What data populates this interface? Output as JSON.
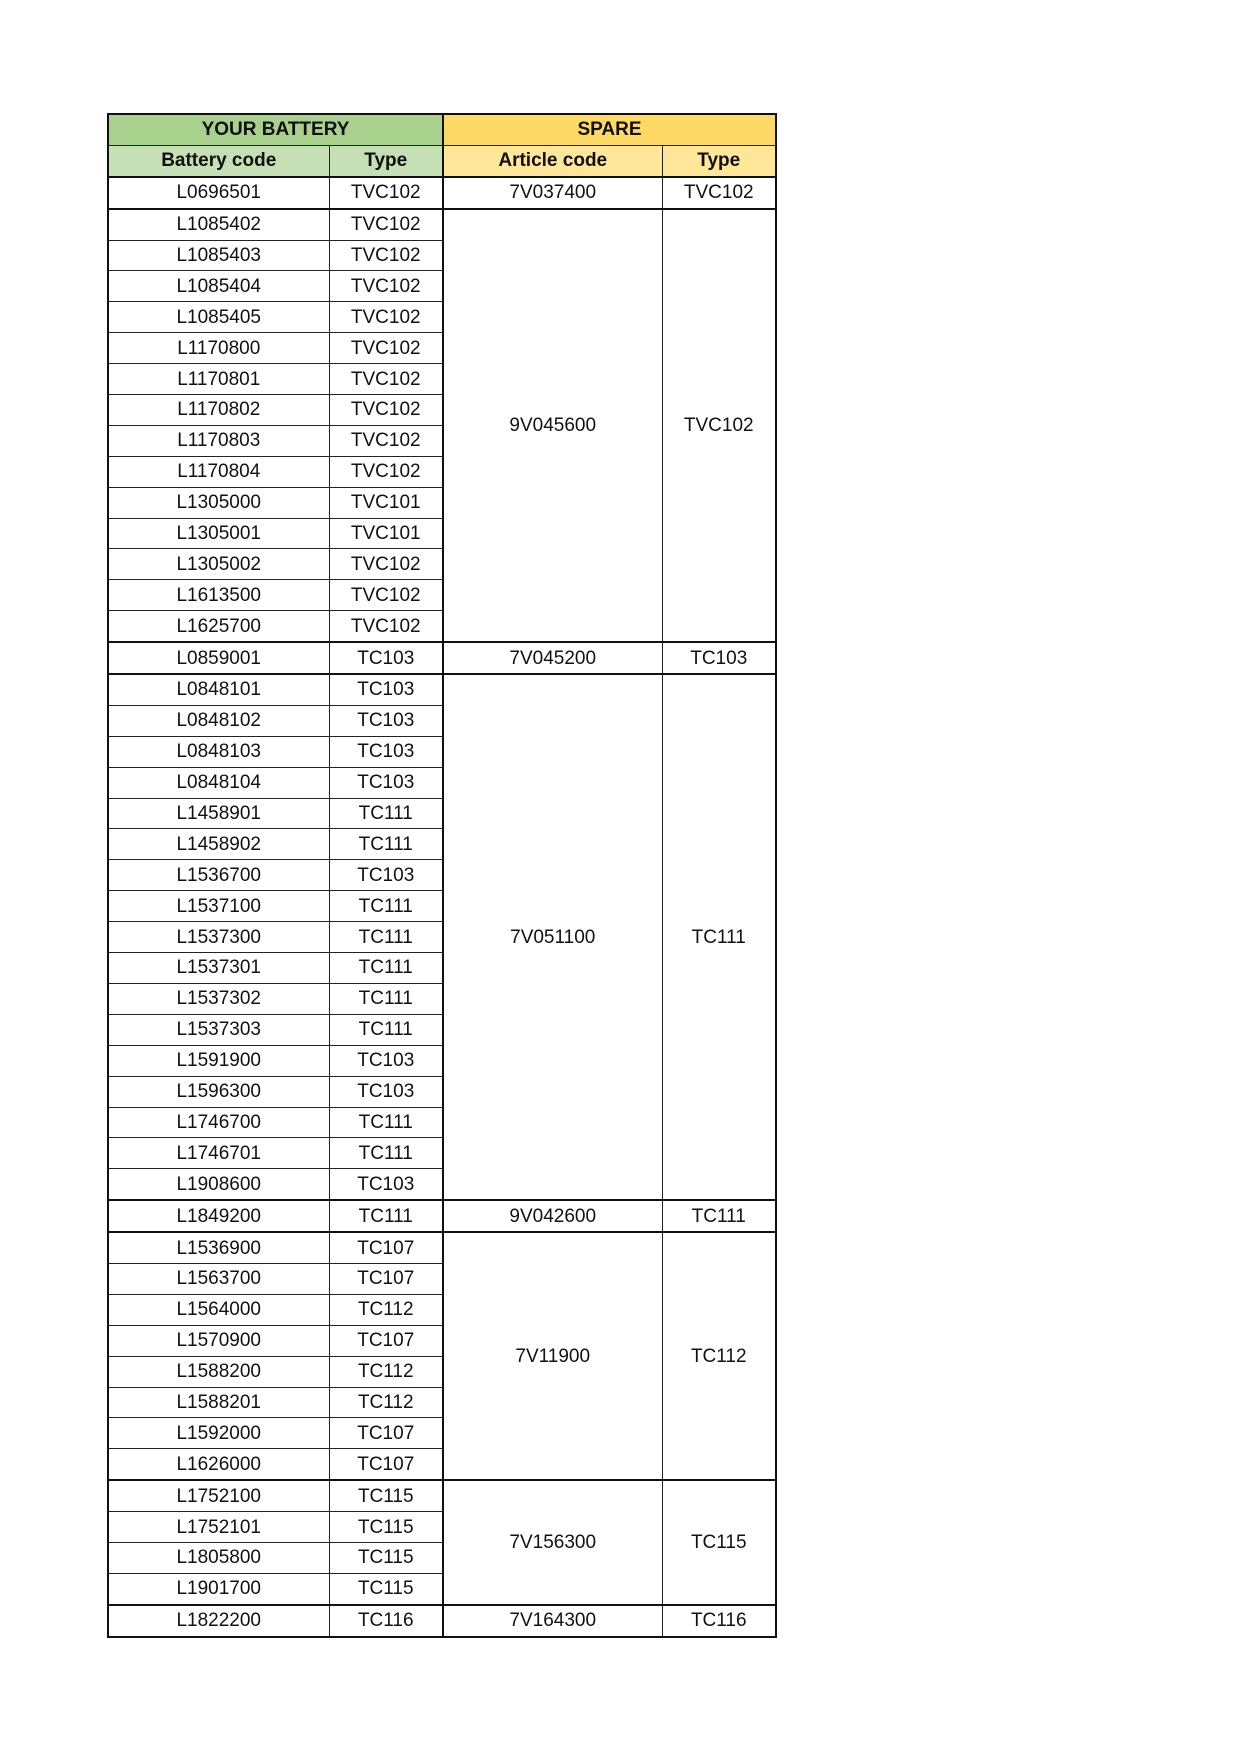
{
  "header": {
    "your_battery": "YOUR BATTERY",
    "spare": "SPARE",
    "col_battery_code": "Battery code",
    "col_type": "Type",
    "col_article_code": "Article code",
    "col_spare_type": "Type"
  },
  "colors": {
    "green_header": "#a9d18e",
    "green_subheader": "#c5e0b4",
    "yellow_header": "#ffd966",
    "yellow_subheader": "#ffe699"
  },
  "groups": [
    {
      "article": "7V037400",
      "type": "TVC102",
      "rows": [
        [
          "L0696501",
          "TVC102"
        ]
      ]
    },
    {
      "article": "9V045600",
      "type": "TVC102",
      "rows": [
        [
          "L1085402",
          "TVC102"
        ],
        [
          "L1085403",
          "TVC102"
        ],
        [
          "L1085404",
          "TVC102"
        ],
        [
          "L1085405",
          "TVC102"
        ],
        [
          "L1170800",
          "TVC102"
        ],
        [
          "L1170801",
          "TVC102"
        ],
        [
          "L1170802",
          "TVC102"
        ],
        [
          "L1170803",
          "TVC102"
        ],
        [
          "L1170804",
          "TVC102"
        ],
        [
          "L1305000",
          "TVC101"
        ],
        [
          "L1305001",
          "TVC101"
        ],
        [
          "L1305002",
          "TVC102"
        ],
        [
          "L1613500",
          "TVC102"
        ],
        [
          "L1625700",
          "TVC102"
        ]
      ]
    },
    {
      "article": "7V045200",
      "type": "TC103",
      "rows": [
        [
          "L0859001",
          "TC103"
        ]
      ]
    },
    {
      "article": "7V051100",
      "type": "TC111",
      "rows": [
        [
          "L0848101",
          "TC103"
        ],
        [
          "L0848102",
          "TC103"
        ],
        [
          "L0848103",
          "TC103"
        ],
        [
          "L0848104",
          "TC103"
        ],
        [
          "L1458901",
          "TC111"
        ],
        [
          "L1458902",
          "TC111"
        ],
        [
          "L1536700",
          "TC103"
        ],
        [
          "L1537100",
          "TC111"
        ],
        [
          "L1537300",
          "TC111"
        ],
        [
          "L1537301",
          "TC111"
        ],
        [
          "L1537302",
          "TC111"
        ],
        [
          "L1537303",
          "TC111"
        ],
        [
          "L1591900",
          "TC103"
        ],
        [
          "L1596300",
          "TC103"
        ],
        [
          "L1746700",
          "TC111"
        ],
        [
          "L1746701",
          "TC111"
        ],
        [
          "L1908600",
          "TC103"
        ]
      ]
    },
    {
      "article": "9V042600",
      "type": "TC111",
      "rows": [
        [
          "L1849200",
          "TC111"
        ]
      ]
    },
    {
      "article": "7V11900",
      "type": "TC112",
      "rows": [
        [
          "L1536900",
          "TC107"
        ],
        [
          "L1563700",
          "TC107"
        ],
        [
          "L1564000",
          "TC112"
        ],
        [
          "L1570900",
          "TC107"
        ],
        [
          "L1588200",
          "TC112"
        ],
        [
          "L1588201",
          "TC112"
        ],
        [
          "L1592000",
          "TC107"
        ],
        [
          "L1626000",
          "TC107"
        ]
      ]
    },
    {
      "article": "7V156300",
      "type": "TC115",
      "rows": [
        [
          "L1752100",
          "TC115"
        ],
        [
          "L1752101",
          "TC115"
        ],
        [
          "L1805800",
          "TC115"
        ],
        [
          "L1901700",
          "TC115"
        ]
      ]
    },
    {
      "article": "7V164300",
      "type": "TC116",
      "rows": [
        [
          "L1822200",
          "TC116"
        ]
      ]
    }
  ]
}
